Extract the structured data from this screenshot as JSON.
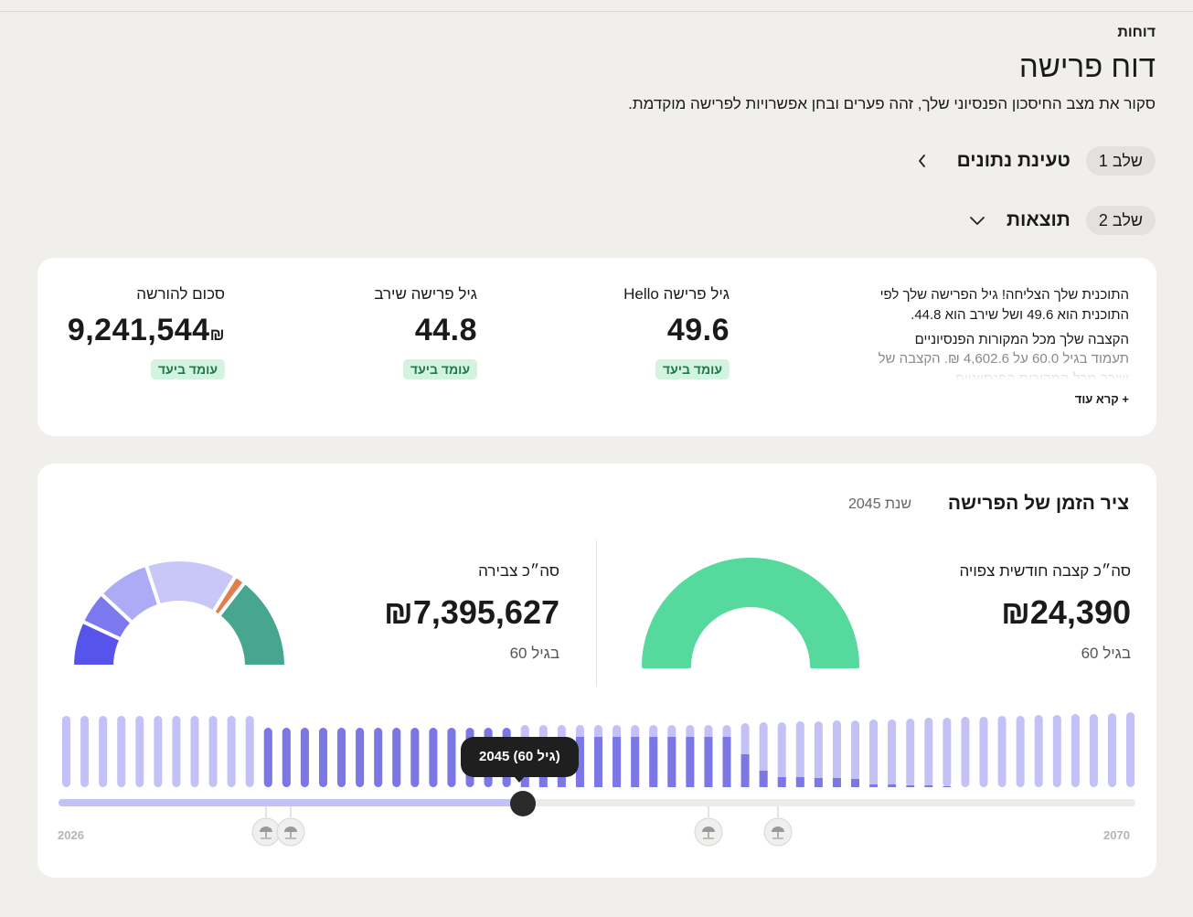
{
  "breadcrumb": "דוחות",
  "title": "דוח פרישה",
  "description": "סקור את מצב החיסכון הפנסיוני שלך, זהה פערים ובחן אפשרויות לפרישה מוקדמת.",
  "steps": [
    {
      "pill": "שלב 1",
      "title": "טעינת נתונים",
      "expanded": false
    },
    {
      "pill": "שלב 2",
      "title": "תוצאות",
      "expanded": true
    }
  ],
  "summary": {
    "text_p1": "התוכנית שלך הצליחה! גיל הפרישה שלך לפי התוכנית הוא 49.6 ושל שירב הוא 44.8.",
    "text_p2": "הקצבה שלך מכל המקורות הפנסיוניים",
    "text_faded": "תעמוד בגיל 60.0 על 4,602.6 ₪. הקצבה של שירב מכל המקורות הפנסיוניים",
    "read_more": "+ קרא עוד",
    "metrics": [
      {
        "label": "גיל פרישה Hello",
        "value": "49.6",
        "badge": "עומד ביעד"
      },
      {
        "label": "גיל פרישה שירב",
        "value": "44.8",
        "badge": "עומד ביעד"
      },
      {
        "label": "סכום להורשה",
        "value": "9,241,544",
        "currency": "₪",
        "badge": "עומד ביעד"
      }
    ]
  },
  "timeline": {
    "title": "ציר הזמן של הפרישה",
    "year_label": "שנת 2045",
    "monthly": {
      "label": "סה״כ קצבה חודשית צפויה",
      "value": "₪24,390",
      "sub": "בגיל 60"
    },
    "accumulated": {
      "label": "סה״כ צבירה",
      "value": "₪7,395,627",
      "sub": "בגיל 60"
    },
    "tooltip": "2045 (גיל 60)",
    "start_year": "2026",
    "end_year": "2070",
    "slider_fraction": 0.43,
    "colors": {
      "light_bar": "#c3c1f6",
      "dark_bar": "#7b78e6",
      "gauge_green": "#56d99d",
      "gauge_teal": "#46a68f",
      "gauge_orange": "#e07f4c",
      "gauge_blue_1": "#5754ec",
      "gauge_blue_2": "#7c79ee",
      "gauge_blue_3": "#adabf5",
      "gauge_blue_4": "#c9c7f8"
    },
    "milestone_icon": "umbrella-icon"
  }
}
